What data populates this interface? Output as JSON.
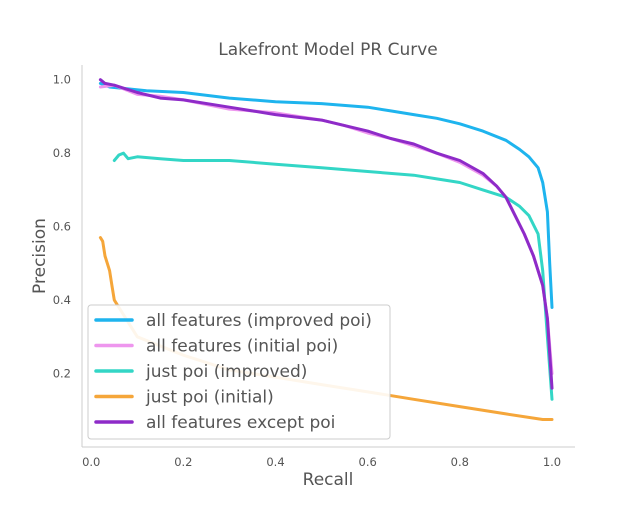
{
  "chart_data": {
    "type": "line",
    "title": "Lakefront Model PR Curve",
    "xlabel": "Recall",
    "ylabel": "Precision",
    "xlim": [
      -0.02,
      1.05
    ],
    "ylim": [
      0.0,
      1.04
    ],
    "xticks": [
      "0.0",
      "0.2",
      "0.4",
      "0.6",
      "0.8",
      "1.0"
    ],
    "yticks": [
      "0.2",
      "0.4",
      "0.6",
      "0.8",
      "1.0"
    ],
    "grid": false,
    "legend_position": "lower-left",
    "series": [
      {
        "name": "all features (improved poi)",
        "color": "#1eb4ee",
        "x": [
          0.02,
          0.04,
          0.08,
          0.12,
          0.2,
          0.3,
          0.4,
          0.5,
          0.6,
          0.65,
          0.7,
          0.75,
          0.8,
          0.85,
          0.9,
          0.93,
          0.95,
          0.97,
          0.98,
          0.99,
          0.995,
          1.0
        ],
        "y": [
          0.99,
          0.98,
          0.975,
          0.97,
          0.965,
          0.95,
          0.94,
          0.935,
          0.925,
          0.915,
          0.905,
          0.895,
          0.88,
          0.86,
          0.835,
          0.81,
          0.79,
          0.76,
          0.72,
          0.64,
          0.5,
          0.38
        ]
      },
      {
        "name": "all features (initial poi)",
        "color": "#ee96ee",
        "x": [
          0.02,
          0.05,
          0.1,
          0.15,
          0.2,
          0.3,
          0.4,
          0.5,
          0.55,
          0.6,
          0.65,
          0.7,
          0.75,
          0.8,
          0.85,
          0.88,
          0.9,
          0.92,
          0.94,
          0.96,
          0.98,
          0.99,
          1.0
        ],
        "y": [
          0.98,
          0.985,
          0.96,
          0.955,
          0.945,
          0.92,
          0.91,
          0.89,
          0.875,
          0.855,
          0.84,
          0.82,
          0.8,
          0.775,
          0.74,
          0.71,
          0.68,
          0.63,
          0.58,
          0.52,
          0.44,
          0.35,
          0.2
        ]
      },
      {
        "name": "just poi (improved)",
        "color": "#33d6c6",
        "x": [
          0.05,
          0.06,
          0.07,
          0.08,
          0.1,
          0.15,
          0.2,
          0.3,
          0.4,
          0.5,
          0.6,
          0.7,
          0.75,
          0.8,
          0.85,
          0.9,
          0.93,
          0.95,
          0.97,
          0.98,
          0.99,
          1.0
        ],
        "y": [
          0.78,
          0.795,
          0.8,
          0.785,
          0.79,
          0.785,
          0.78,
          0.78,
          0.77,
          0.76,
          0.75,
          0.74,
          0.73,
          0.72,
          0.7,
          0.68,
          0.655,
          0.63,
          0.58,
          0.48,
          0.3,
          0.13
        ]
      },
      {
        "name": "just poi (initial)",
        "color": "#f5a63a",
        "x": [
          0.02,
          0.025,
          0.03,
          0.035,
          0.04,
          0.045,
          0.05,
          0.1,
          0.2,
          0.3,
          0.4,
          0.5,
          0.6,
          0.7,
          0.8,
          0.9,
          0.98,
          1.0
        ],
        "y": [
          0.57,
          0.56,
          0.52,
          0.5,
          0.48,
          0.44,
          0.4,
          0.3,
          0.25,
          0.21,
          0.19,
          0.17,
          0.15,
          0.13,
          0.11,
          0.09,
          0.075,
          0.075
        ]
      },
      {
        "name": "all features except poi",
        "color": "#8e2bc8",
        "x": [
          0.02,
          0.03,
          0.05,
          0.1,
          0.15,
          0.2,
          0.3,
          0.4,
          0.5,
          0.55,
          0.6,
          0.65,
          0.7,
          0.75,
          0.8,
          0.85,
          0.88,
          0.9,
          0.92,
          0.94,
          0.96,
          0.98,
          0.99,
          1.0
        ],
        "y": [
          1.0,
          0.99,
          0.985,
          0.965,
          0.95,
          0.945,
          0.925,
          0.905,
          0.89,
          0.875,
          0.86,
          0.84,
          0.825,
          0.8,
          0.78,
          0.745,
          0.71,
          0.68,
          0.63,
          0.58,
          0.52,
          0.44,
          0.35,
          0.16
        ]
      }
    ]
  }
}
